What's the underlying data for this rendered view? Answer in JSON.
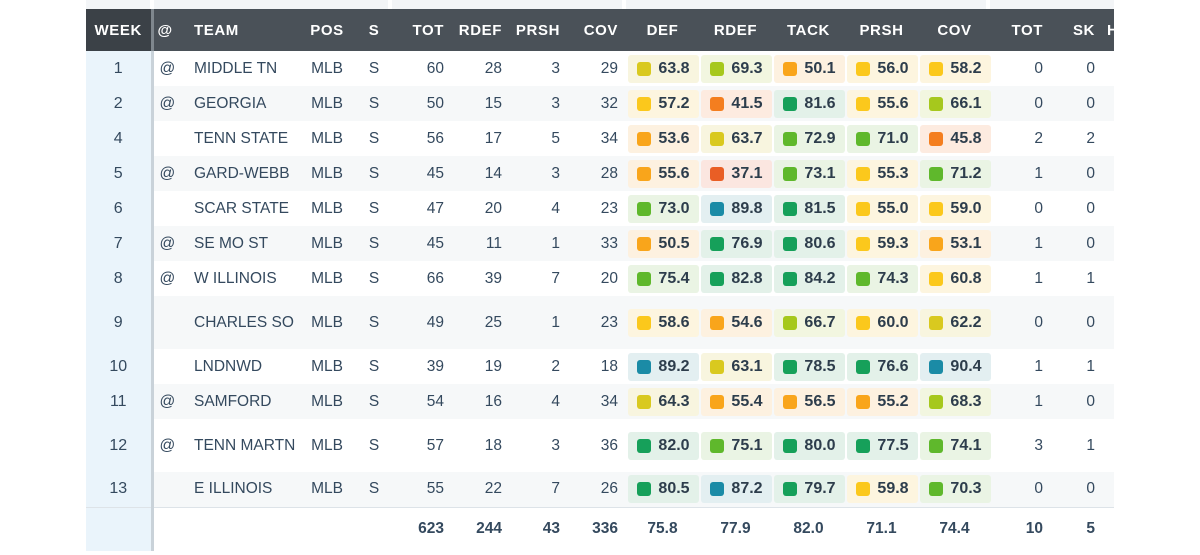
{
  "colors": {
    "header_bg": "#4a5158",
    "week_column_bg": "#eaf4fb",
    "grade_tiers": {
      "elite": {
        "square": "#1b8ba6",
        "background": "#e3eff1"
      },
      "high": {
        "square": "#16a05a",
        "background": "#e3f1e9"
      },
      "good": {
        "square": "#5fb82c",
        "background": "#eaf4e4"
      },
      "above": {
        "square": "#a6c81d",
        "background": "#f2f6e0"
      },
      "average": {
        "square": "#d9c91f",
        "background": "#f8f5df"
      },
      "below": {
        "square": "#fbc81c",
        "background": "#fdf5df"
      },
      "low": {
        "square": "#f9a51b",
        "background": "#fdf1e0"
      },
      "poor": {
        "square": "#f47e1f",
        "background": "#fdebe0"
      },
      "bad": {
        "square": "#e95e25",
        "background": "#fbe6e0"
      }
    }
  },
  "header": {
    "week": "WEEK",
    "at": "@",
    "team": "TEAM",
    "pos": "POS",
    "s": "S",
    "tot": "TOT",
    "rdef": "RDEF",
    "prsh": "PRSH",
    "cov": "COV",
    "g_def": "DEF",
    "g_rdef": "RDEF",
    "g_tack": "TACK",
    "g_prsh": "PRSH",
    "g_cov": "COV",
    "tot2": "TOT",
    "sk": "SK",
    "h": "H"
  },
  "rows": [
    {
      "week": "1",
      "at": "@",
      "team": "MIDDLE TN",
      "pos": "MLB",
      "s": "S",
      "tot": "60",
      "rdef": "28",
      "prsh": "3",
      "cov": "29",
      "grades": [
        {
          "v": "63.8",
          "t": "average"
        },
        {
          "v": "69.3",
          "t": "above"
        },
        {
          "v": "50.1",
          "t": "low"
        },
        {
          "v": "56.0",
          "t": "below"
        },
        {
          "v": "58.2",
          "t": "below"
        }
      ],
      "tot2": "0",
      "sk": "0"
    },
    {
      "week": "2",
      "at": "@",
      "team": "GEORGIA",
      "pos": "MLB",
      "s": "S",
      "tot": "50",
      "rdef": "15",
      "prsh": "3",
      "cov": "32",
      "grades": [
        {
          "v": "57.2",
          "t": "below"
        },
        {
          "v": "41.5",
          "t": "poor"
        },
        {
          "v": "81.6",
          "t": "high"
        },
        {
          "v": "55.6",
          "t": "below"
        },
        {
          "v": "66.1",
          "t": "above"
        }
      ],
      "tot2": "0",
      "sk": "0"
    },
    {
      "week": "4",
      "at": "",
      "team": "TENN STATE",
      "pos": "MLB",
      "s": "S",
      "tot": "56",
      "rdef": "17",
      "prsh": "5",
      "cov": "34",
      "grades": [
        {
          "v": "53.6",
          "t": "low"
        },
        {
          "v": "63.7",
          "t": "average"
        },
        {
          "v": "72.9",
          "t": "good"
        },
        {
          "v": "71.0",
          "t": "good"
        },
        {
          "v": "45.8",
          "t": "poor"
        }
      ],
      "tot2": "2",
      "sk": "2"
    },
    {
      "week": "5",
      "at": "@",
      "team": "GARD-WEBB",
      "pos": "MLB",
      "s": "S",
      "tot": "45",
      "rdef": "14",
      "prsh": "3",
      "cov": "28",
      "grades": [
        {
          "v": "55.6",
          "t": "low"
        },
        {
          "v": "37.1",
          "t": "bad"
        },
        {
          "v": "73.1",
          "t": "good"
        },
        {
          "v": "55.3",
          "t": "below"
        },
        {
          "v": "71.2",
          "t": "good"
        }
      ],
      "tot2": "1",
      "sk": "0"
    },
    {
      "week": "6",
      "at": "",
      "team": "SCAR STATE",
      "pos": "MLB",
      "s": "S",
      "tot": "47",
      "rdef": "20",
      "prsh": "4",
      "cov": "23",
      "grades": [
        {
          "v": "73.0",
          "t": "good"
        },
        {
          "v": "89.8",
          "t": "elite"
        },
        {
          "v": "81.5",
          "t": "high"
        },
        {
          "v": "55.0",
          "t": "below"
        },
        {
          "v": "59.0",
          "t": "below"
        }
      ],
      "tot2": "0",
      "sk": "0"
    },
    {
      "week": "7",
      "at": "@",
      "team": "SE MO ST",
      "pos": "MLB",
      "s": "S",
      "tot": "45",
      "rdef": "11",
      "prsh": "1",
      "cov": "33",
      "grades": [
        {
          "v": "50.5",
          "t": "low"
        },
        {
          "v": "76.9",
          "t": "high"
        },
        {
          "v": "80.6",
          "t": "high"
        },
        {
          "v": "59.3",
          "t": "below"
        },
        {
          "v": "53.1",
          "t": "low"
        }
      ],
      "tot2": "1",
      "sk": "0"
    },
    {
      "week": "8",
      "at": "@",
      "team": "W ILLINOIS",
      "pos": "MLB",
      "s": "S",
      "tot": "66",
      "rdef": "39",
      "prsh": "7",
      "cov": "20",
      "grades": [
        {
          "v": "75.4",
          "t": "good"
        },
        {
          "v": "82.8",
          "t": "high"
        },
        {
          "v": "84.2",
          "t": "high"
        },
        {
          "v": "74.3",
          "t": "good"
        },
        {
          "v": "60.8",
          "t": "below"
        }
      ],
      "tot2": "1",
      "sk": "1"
    },
    {
      "week": "9",
      "at": "",
      "team": "CHARLES SO",
      "pos": "MLB",
      "s": "S",
      "tot": "49",
      "rdef": "25",
      "prsh": "1",
      "cov": "23",
      "grades": [
        {
          "v": "58.6",
          "t": "below"
        },
        {
          "v": "54.6",
          "t": "low"
        },
        {
          "v": "66.7",
          "t": "above"
        },
        {
          "v": "60.0",
          "t": "below"
        },
        {
          "v": "62.2",
          "t": "average"
        }
      ],
      "tot2": "0",
      "sk": "0"
    },
    {
      "week": "10",
      "at": "",
      "team": "LNDNWD",
      "pos": "MLB",
      "s": "S",
      "tot": "39",
      "rdef": "19",
      "prsh": "2",
      "cov": "18",
      "grades": [
        {
          "v": "89.2",
          "t": "elite"
        },
        {
          "v": "63.1",
          "t": "average"
        },
        {
          "v": "78.5",
          "t": "high"
        },
        {
          "v": "76.6",
          "t": "high"
        },
        {
          "v": "90.4",
          "t": "elite"
        }
      ],
      "tot2": "1",
      "sk": "1"
    },
    {
      "week": "11",
      "at": "@",
      "team": "SAMFORD",
      "pos": "MLB",
      "s": "S",
      "tot": "54",
      "rdef": "16",
      "prsh": "4",
      "cov": "34",
      "grades": [
        {
          "v": "64.3",
          "t": "average"
        },
        {
          "v": "55.4",
          "t": "low"
        },
        {
          "v": "56.5",
          "t": "low"
        },
        {
          "v": "55.2",
          "t": "low"
        },
        {
          "v": "68.3",
          "t": "above"
        }
      ],
      "tot2": "1",
      "sk": "0"
    },
    {
      "week": "12",
      "at": "@",
      "team": "TENN MARTN",
      "pos": "MLB",
      "s": "S",
      "tot": "57",
      "rdef": "18",
      "prsh": "3",
      "cov": "36",
      "grades": [
        {
          "v": "82.0",
          "t": "high"
        },
        {
          "v": "75.1",
          "t": "good"
        },
        {
          "v": "80.0",
          "t": "high"
        },
        {
          "v": "77.5",
          "t": "high"
        },
        {
          "v": "74.1",
          "t": "good"
        }
      ],
      "tot2": "3",
      "sk": "1"
    },
    {
      "week": "13",
      "at": "",
      "team": "E ILLINOIS",
      "pos": "MLB",
      "s": "S",
      "tot": "55",
      "rdef": "22",
      "prsh": "7",
      "cov": "26",
      "grades": [
        {
          "v": "80.5",
          "t": "high"
        },
        {
          "v": "87.2",
          "t": "elite"
        },
        {
          "v": "79.7",
          "t": "high"
        },
        {
          "v": "59.8",
          "t": "below"
        },
        {
          "v": "70.3",
          "t": "good"
        }
      ],
      "tot2": "0",
      "sk": "0"
    }
  ],
  "totals": {
    "tot": "623",
    "rdef": "244",
    "prsh": "43",
    "cov": "336",
    "g_def": "75.8",
    "g_rdef": "77.9",
    "g_tack": "82.0",
    "g_prsh": "71.1",
    "g_cov": "74.4",
    "tot2": "10",
    "sk": "5"
  }
}
